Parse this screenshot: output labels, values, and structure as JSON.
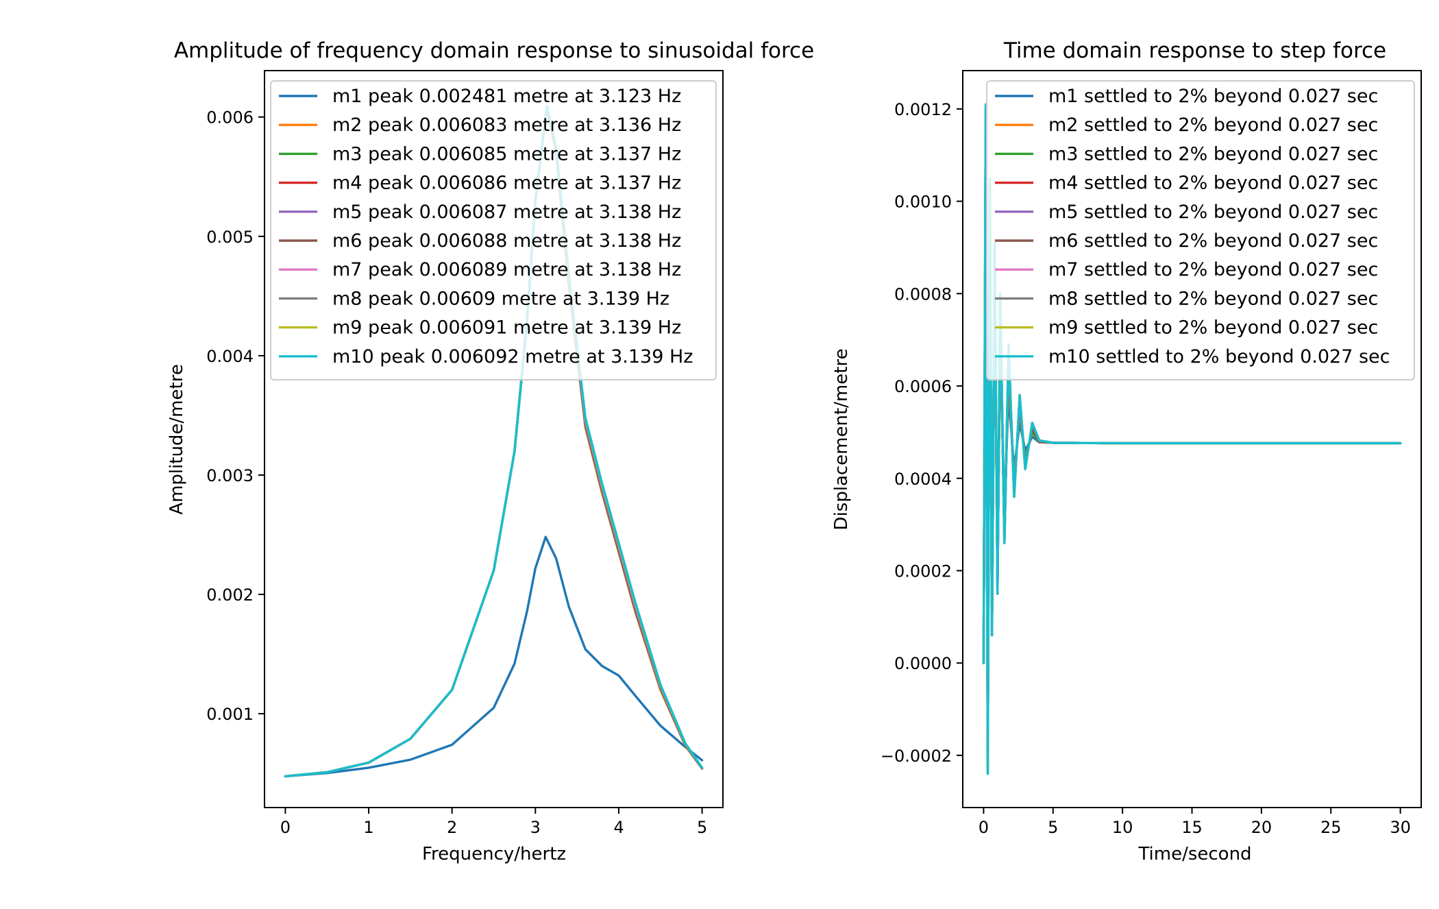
{
  "colors": [
    "#1f77b4",
    "#ff7f0e",
    "#2ca02c",
    "#d62728",
    "#9467bd",
    "#8c564b",
    "#e377c2",
    "#7f7f7f",
    "#bcbd22",
    "#17becf"
  ],
  "chart_data": [
    {
      "type": "line",
      "title": "Amplitude of frequency domain response to sinusoidal force",
      "xlabel": "Frequency/hertz",
      "ylabel": "Amplitude/metre",
      "xlim": [
        -0.25,
        5.25
      ],
      "ylim": [
        0.000214,
        0.006389
      ],
      "xticks": [
        0,
        1,
        2,
        3,
        4,
        5
      ],
      "xtick_labels": [
        "0",
        "1",
        "2",
        "3",
        "4",
        "5"
      ],
      "yticks": [
        0.001,
        0.002,
        0.003,
        0.004,
        0.005,
        0.006
      ],
      "ytick_labels": [
        "0.001",
        "0.002",
        "0.003",
        "0.004",
        "0.005",
        "0.006"
      ],
      "grid": false,
      "legend_placement": "top-left",
      "series": [
        {
          "name": "m1 peak 0.002481 metre at 3.123 Hz",
          "x": [
            0,
            0.5,
            1.0,
            1.5,
            2.0,
            2.5,
            2.75,
            2.9,
            3.0,
            3.123,
            3.25,
            3.4,
            3.6,
            3.8,
            4.0,
            4.2,
            4.5,
            4.8,
            5.0
          ],
          "y": [
            0.000476,
            0.000503,
            0.000548,
            0.000615,
            0.00074,
            0.00105,
            0.00142,
            0.00186,
            0.00222,
            0.002481,
            0.0023,
            0.0019,
            0.00154,
            0.0014,
            0.00132,
            0.00115,
            0.0009,
            0.00072,
            0.00061
          ]
        },
        {
          "name": "m2 peak 0.006083 metre at 3.136 Hz",
          "x": [
            0,
            0.5,
            1.0,
            1.5,
            2.0,
            2.5,
            2.75,
            2.9,
            3.0,
            3.136,
            3.25,
            3.4,
            3.6,
            3.8,
            4.0,
            4.2,
            4.5,
            4.8,
            5.0
          ],
          "y": [
            0.000476,
            0.00051,
            0.00059,
            0.00079,
            0.0012,
            0.0022,
            0.0032,
            0.0043,
            0.0053,
            0.006083,
            0.0057,
            0.0046,
            0.0034,
            0.00285,
            0.00235,
            0.00185,
            0.0012,
            0.00073,
            0.00054
          ]
        },
        {
          "name": "m3 peak 0.006085 metre at 3.137 Hz",
          "x": [
            0,
            0.5,
            1.0,
            1.5,
            2.0,
            2.5,
            2.75,
            2.9,
            3.0,
            3.137,
            3.25,
            3.4,
            3.6,
            3.8,
            4.0,
            4.2,
            4.5,
            4.8,
            5.0
          ],
          "y": [
            0.000476,
            0.00051,
            0.00059,
            0.00079,
            0.0012,
            0.0022,
            0.0032,
            0.0043,
            0.0053,
            0.006085,
            0.00571,
            0.00461,
            0.00341,
            0.00286,
            0.00236,
            0.00186,
            0.00121,
            0.000735,
            0.000541
          ]
        },
        {
          "name": "m4 peak 0.006086 metre at 3.137 Hz",
          "x": [
            0,
            0.5,
            1.0,
            1.5,
            2.0,
            2.5,
            2.75,
            2.9,
            3.0,
            3.137,
            3.25,
            3.4,
            3.6,
            3.8,
            4.0,
            4.2,
            4.5,
            4.8,
            5.0
          ],
          "y": [
            0.000476,
            0.00051,
            0.00059,
            0.00079,
            0.0012,
            0.0022,
            0.0032,
            0.0043,
            0.0053,
            0.006086,
            0.005715,
            0.00462,
            0.00342,
            0.00287,
            0.00237,
            0.00187,
            0.001215,
            0.000738,
            0.000542
          ]
        },
        {
          "name": "m5 peak 0.006087 metre at 3.138 Hz",
          "x": [
            0,
            0.5,
            1.0,
            1.5,
            2.0,
            2.5,
            2.75,
            2.9,
            3.0,
            3.138,
            3.25,
            3.4,
            3.6,
            3.8,
            4.0,
            4.2,
            4.5,
            4.8,
            5.0
          ],
          "y": [
            0.000476,
            0.00051,
            0.00059,
            0.00079,
            0.0012,
            0.0022,
            0.0032,
            0.0043,
            0.0053,
            0.006087,
            0.00572,
            0.00463,
            0.00343,
            0.00288,
            0.00238,
            0.00188,
            0.00122,
            0.00074,
            0.000543
          ]
        },
        {
          "name": "m6 peak 0.006088 metre at 3.138 Hz",
          "x": [
            0,
            0.5,
            1.0,
            1.5,
            2.0,
            2.5,
            2.75,
            2.9,
            3.0,
            3.138,
            3.25,
            3.4,
            3.6,
            3.8,
            4.0,
            4.2,
            4.5,
            4.8,
            5.0
          ],
          "y": [
            0.000476,
            0.00051,
            0.00059,
            0.00079,
            0.0012,
            0.0022,
            0.0032,
            0.0043,
            0.0053,
            0.006088,
            0.005725,
            0.00464,
            0.00344,
            0.00289,
            0.00239,
            0.00189,
            0.001225,
            0.000742,
            0.000544
          ]
        },
        {
          "name": "m7 peak 0.006089 metre at 3.138 Hz",
          "x": [
            0,
            0.5,
            1.0,
            1.5,
            2.0,
            2.5,
            2.75,
            2.9,
            3.0,
            3.138,
            3.25,
            3.4,
            3.6,
            3.8,
            4.0,
            4.2,
            4.5,
            4.8,
            5.0
          ],
          "y": [
            0.000476,
            0.00051,
            0.00059,
            0.00079,
            0.0012,
            0.0022,
            0.0032,
            0.0043,
            0.0053,
            0.006089,
            0.00573,
            0.00465,
            0.00345,
            0.0029,
            0.0024,
            0.0019,
            0.00123,
            0.000744,
            0.000545
          ]
        },
        {
          "name": "m8 peak 0.00609 metre at 3.139 Hz",
          "x": [
            0,
            0.5,
            1.0,
            1.5,
            2.0,
            2.5,
            2.75,
            2.9,
            3.0,
            3.139,
            3.25,
            3.4,
            3.6,
            3.8,
            4.0,
            4.2,
            4.5,
            4.8,
            5.0
          ],
          "y": [
            0.000476,
            0.00051,
            0.00059,
            0.00079,
            0.0012,
            0.0022,
            0.0032,
            0.0043,
            0.0053,
            0.00609,
            0.005735,
            0.00466,
            0.00346,
            0.00291,
            0.00241,
            0.00191,
            0.001235,
            0.000746,
            0.000546
          ]
        },
        {
          "name": "m9 peak 0.006091 metre at 3.139 Hz",
          "x": [
            0,
            0.5,
            1.0,
            1.5,
            2.0,
            2.5,
            2.75,
            2.9,
            3.0,
            3.139,
            3.25,
            3.4,
            3.6,
            3.8,
            4.0,
            4.2,
            4.5,
            4.8,
            5.0
          ],
          "y": [
            0.000476,
            0.00051,
            0.00059,
            0.00079,
            0.0012,
            0.0022,
            0.0032,
            0.0043,
            0.0053,
            0.006091,
            0.00574,
            0.00467,
            0.00347,
            0.00292,
            0.00242,
            0.00192,
            0.00124,
            0.000748,
            0.000547
          ]
        },
        {
          "name": "m10 peak 0.006092 metre at 3.139 Hz",
          "x": [
            0,
            0.5,
            1.0,
            1.5,
            2.0,
            2.5,
            2.75,
            2.9,
            3.0,
            3.139,
            3.25,
            3.4,
            3.6,
            3.8,
            4.0,
            4.2,
            4.5,
            4.8,
            5.0
          ],
          "y": [
            0.000476,
            0.00051,
            0.00059,
            0.00079,
            0.0012,
            0.0022,
            0.0032,
            0.0043,
            0.0053,
            0.006092,
            0.005745,
            0.00468,
            0.00348,
            0.00293,
            0.00243,
            0.00193,
            0.001245,
            0.00075,
            0.000548
          ]
        }
      ]
    },
    {
      "type": "line",
      "title": "Time domain response to step force",
      "xlabel": "Time/second",
      "ylabel": "Displacement/metre",
      "xlim": [
        -1.5,
        31.5
      ],
      "ylim": [
        -0.000313,
        0.001283
      ],
      "xticks": [
        0,
        5,
        10,
        15,
        20,
        25,
        30
      ],
      "xtick_labels": [
        "0",
        "5",
        "10",
        "15",
        "20",
        "25",
        "30"
      ],
      "yticks": [
        -0.0002,
        0,
        0.0002,
        0.0004,
        0.0006,
        0.0008,
        0.001,
        0.0012
      ],
      "ytick_labels": [
        "−0.0002",
        "0.0000",
        "0.0002",
        "0.0004",
        "0.0006",
        "0.0008",
        "0.0010",
        "0.0012"
      ],
      "grid": false,
      "legend_placement": "top-right",
      "series": [
        {
          "name": "m1 settled to 2% beyond 0.027 sec",
          "x": [
            0,
            0.15,
            0.3,
            0.45,
            0.6,
            0.8,
            1.0,
            1.2,
            1.5,
            1.8,
            2.2,
            2.6,
            3.0,
            3.5,
            4.0,
            5.0,
            10.0,
            20.0,
            30.0
          ],
          "y": [
            0.0,
            0.00092,
            3e-05,
            0.00086,
            0.00013,
            0.00078,
            0.00023,
            0.00068,
            0.00034,
            0.00058,
            0.00042,
            0.00052,
            0.00046,
            0.00049,
            0.000478,
            0.000477,
            0.000476,
            0.000476,
            0.000476
          ]
        },
        {
          "name": "m2 settled to 2% beyond 0.027 sec",
          "x": [
            0,
            0.15,
            0.3,
            0.45,
            0.6,
            0.8,
            1.0,
            1.2,
            1.5,
            1.8,
            2.2,
            2.6,
            3.0,
            3.5,
            4.0,
            5.0,
            10.0,
            20.0,
            30.0
          ],
          "y": [
            0.0,
            0.0011,
            -0.00018,
            0.00098,
            6e-05,
            0.00085,
            0.00017,
            0.00074,
            0.00029,
            0.00063,
            0.00039,
            0.00055,
            0.00044,
            0.0005,
            0.000479,
            0.000477,
            0.000476,
            0.000476,
            0.000476
          ]
        },
        {
          "name": "m3 settled to 2% beyond 0.027 sec",
          "x": [
            0,
            0.15,
            0.3,
            0.45,
            0.6,
            0.8,
            1.0,
            1.2,
            1.5,
            1.8,
            2.2,
            2.6,
            3.0,
            3.5,
            4.0,
            5.0,
            10.0,
            20.0,
            30.0
          ],
          "y": [
            0.0,
            0.00114,
            -0.0002,
            0.001,
            6e-05,
            0.00086,
            0.00017,
            0.00075,
            0.00028,
            0.00064,
            0.00038,
            0.00056,
            0.00044,
            0.0005,
            0.00048,
            0.000477,
            0.000476,
            0.000476,
            0.000476
          ]
        },
        {
          "name": "m4 settled to 2% beyond 0.027 sec",
          "x": [
            0,
            0.15,
            0.3,
            0.45,
            0.6,
            0.8,
            1.0,
            1.2,
            1.5,
            1.8,
            2.2,
            2.6,
            3.0,
            3.5,
            4.0,
            5.0,
            10.0,
            20.0,
            30.0
          ],
          "y": [
            0.0,
            0.00116,
            -0.00021,
            0.00101,
            6e-05,
            0.00087,
            0.00016,
            0.00076,
            0.00028,
            0.00065,
            0.00038,
            0.00056,
            0.00043,
            0.00051,
            0.00048,
            0.000477,
            0.000476,
            0.000476,
            0.000476
          ]
        },
        {
          "name": "m5 settled to 2% beyond 0.027 sec",
          "x": [
            0,
            0.15,
            0.3,
            0.45,
            0.6,
            0.8,
            1.0,
            1.2,
            1.5,
            1.8,
            2.2,
            2.6,
            3.0,
            3.5,
            4.0,
            5.0,
            10.0,
            20.0,
            30.0
          ],
          "y": [
            0.0,
            0.00117,
            -0.00022,
            0.00102,
            6e-05,
            0.00088,
            0.00016,
            0.00077,
            0.00027,
            0.00066,
            0.00037,
            0.00057,
            0.00043,
            0.00051,
            0.000481,
            0.000477,
            0.000476,
            0.000476,
            0.000476
          ]
        },
        {
          "name": "m6 settled to 2% beyond 0.027 sec",
          "x": [
            0,
            0.15,
            0.3,
            0.45,
            0.6,
            0.8,
            1.0,
            1.2,
            1.5,
            1.8,
            2.2,
            2.6,
            3.0,
            3.5,
            4.0,
            5.0,
            10.0,
            20.0,
            30.0
          ],
          "y": [
            0.0,
            0.00118,
            -0.00022,
            0.00103,
            6e-05,
            0.00089,
            0.00016,
            0.00078,
            0.00027,
            0.00067,
            0.00037,
            0.00057,
            0.00043,
            0.00051,
            0.000481,
            0.000477,
            0.000476,
            0.000476,
            0.000476
          ]
        },
        {
          "name": "m7 settled to 2% beyond 0.027 sec",
          "x": [
            0,
            0.15,
            0.3,
            0.45,
            0.6,
            0.8,
            1.0,
            1.2,
            1.5,
            1.8,
            2.2,
            2.6,
            3.0,
            3.5,
            4.0,
            5.0,
            10.0,
            20.0,
            30.0
          ],
          "y": [
            0.0,
            0.00119,
            -0.00023,
            0.00104,
            6e-05,
            0.0009,
            0.00015,
            0.00079,
            0.00026,
            0.00068,
            0.00036,
            0.00058,
            0.00042,
            0.00052,
            0.000482,
            0.000477,
            0.000476,
            0.000476,
            0.000476
          ]
        },
        {
          "name": "m8 settled to 2% beyond 0.027 sec",
          "x": [
            0,
            0.15,
            0.3,
            0.45,
            0.6,
            0.8,
            1.0,
            1.2,
            1.5,
            1.8,
            2.2,
            2.6,
            3.0,
            3.5,
            4.0,
            5.0,
            10.0,
            20.0,
            30.0
          ],
          "y": [
            0.0,
            0.0012,
            -0.00023,
            0.00104,
            6e-05,
            0.0009,
            0.00015,
            0.00079,
            0.00026,
            0.00068,
            0.00036,
            0.00058,
            0.00042,
            0.00052,
            0.000482,
            0.000477,
            0.000476,
            0.000476,
            0.000476
          ]
        },
        {
          "name": "m9 settled to 2% beyond 0.027 sec",
          "x": [
            0,
            0.15,
            0.3,
            0.45,
            0.6,
            0.8,
            1.0,
            1.2,
            1.5,
            1.8,
            2.2,
            2.6,
            3.0,
            3.5,
            4.0,
            5.0,
            10.0,
            20.0,
            30.0
          ],
          "y": [
            0.0,
            0.0012,
            -0.00024,
            0.00105,
            6e-05,
            0.00091,
            0.00015,
            0.0008,
            0.00026,
            0.00069,
            0.00036,
            0.00058,
            0.00042,
            0.00052,
            0.000482,
            0.000477,
            0.000476,
            0.000476,
            0.000476
          ]
        },
        {
          "name": "m10 settled to 2% beyond 0.027 sec",
          "x": [
            0,
            0.15,
            0.3,
            0.45,
            0.6,
            0.8,
            1.0,
            1.2,
            1.5,
            1.8,
            2.2,
            2.6,
            3.0,
            3.5,
            4.0,
            5.0,
            10.0,
            20.0,
            30.0
          ],
          "y": [
            0.0,
            0.00121,
            -0.00024,
            0.00105,
            6e-05,
            0.00091,
            0.00015,
            0.0008,
            0.00026,
            0.00069,
            0.00036,
            0.00058,
            0.00042,
            0.00052,
            0.000482,
            0.000477,
            0.000476,
            0.000476,
            0.000476
          ]
        }
      ]
    }
  ]
}
